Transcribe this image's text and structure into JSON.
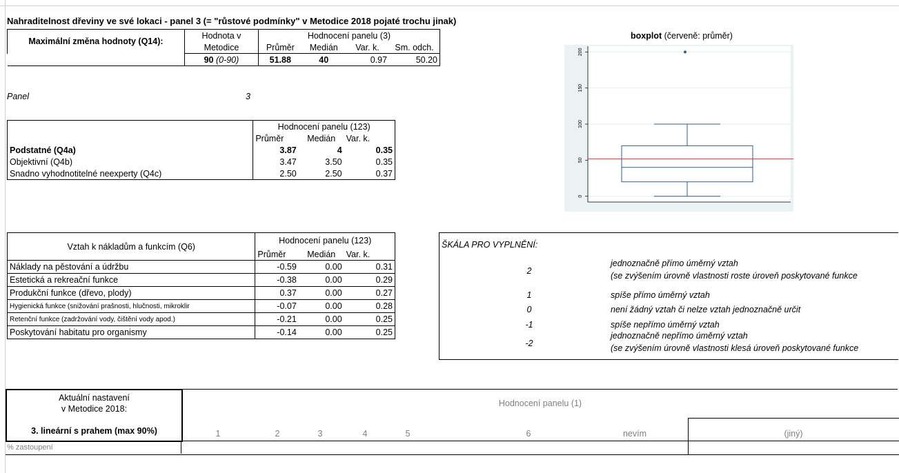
{
  "title": "Nahraditelnost dřeviny ve své lokaci - panel 3 (= \"růstové podmínky\" v Metodice 2018 pojaté trochu jinak)",
  "q14": {
    "row_label": "Maximální změna hodnoty (Q14):",
    "hodnota_header_1": "Hodnota v",
    "hodnota_header_2": "Metodice",
    "panel_header": "Hodnocení panelu (3)",
    "col_prumer": "Průměr",
    "col_median": "Medián",
    "col_vark": "Var. k.",
    "col_smodch": "Sm. odch.",
    "hodnota_value": "90",
    "hodnota_range": "(0-90)",
    "prumer": "51.88",
    "median": "40",
    "vark": "0.97",
    "smodch": "50.20"
  },
  "panel": {
    "label": "Panel",
    "value": "3"
  },
  "q4": {
    "header": "Hodnocení panelu (123)",
    "col_prumer": "Průměr",
    "col_median": "Medián",
    "col_vark": "Var. k.",
    "rows": [
      {
        "label": "Podstatné (Q4a)",
        "prumer": "3.87",
        "median": "4",
        "vark": "0.35"
      },
      {
        "label": "Objektivní (Q4b)",
        "prumer": "3.47",
        "median": "3.50",
        "vark": "0.35"
      },
      {
        "label": "Snadno vyhodnotitelné neexperty (Q4c)",
        "prumer": "2.50",
        "median": "2.50",
        "vark": "0.37"
      }
    ]
  },
  "q6": {
    "title": "Vztah k nákladům a funkcím (Q6)",
    "header": "Hodnocení panelu (123)",
    "col_prumer": "Průměr",
    "col_median": "Medián",
    "col_vark": "Var. k.",
    "rows": [
      {
        "label": "Náklady na pěstování a údržbu",
        "prumer": "-0.59",
        "median": "0.00",
        "vark": "0.31",
        "small": false
      },
      {
        "label": "Estetická a rekreační funkce",
        "prumer": "-0.38",
        "median": "0.00",
        "vark": "0.29",
        "small": false
      },
      {
        "label": "Produkční funkce (dřevo, plody)",
        "prumer": "0.37",
        "median": "0.00",
        "vark": "0.27",
        "small": false
      },
      {
        "label": "Hygienická funkce (snižování prašnosti, hlučnosti, mikroklir",
        "prumer": "-0.07",
        "median": "0.00",
        "vark": "0.28",
        "small": true
      },
      {
        "label": "Retenční funkce (zadržování vody, čištění vody apod.)",
        "prumer": "-0.21",
        "median": "0.00",
        "vark": "0.25",
        "small": true
      },
      {
        "label": "Poskytování habitatu pro organismy",
        "prumer": "-0.14",
        "median": "0.00",
        "vark": "0.25",
        "small": false
      }
    ]
  },
  "scale": {
    "title": "ŠKÁLA PRO VYPLNĚNÍ:",
    "items": [
      {
        "value": "2",
        "text": "jednoznačně přímo úměrný vztah",
        "text2": "(se zvýšením úrovně vlastnosti roste úroveň poskytované funkce"
      },
      {
        "value": "1",
        "text": "spíše přímo úměrný vztah",
        "text2": ""
      },
      {
        "value": "0",
        "text": "není žádný vztah či nelze vztah jednoznačně určit",
        "text2": ""
      },
      {
        "value": "-1",
        "text": "spíše nepřímo úměrný vztah",
        "text2": ""
      },
      {
        "value": "-2",
        "text": "jednoznačně nepřímo úměrný vztah",
        "text2": "(se zvýšením úrovně vlastnosti klesá úroveň poskytované funkce"
      }
    ]
  },
  "boxplot": {
    "title_bold": "boxplot",
    "title_rest": " (červeně: průměr)",
    "colors": {
      "box": "#2e5f8a",
      "mean": "#d0343c",
      "bg": "#eaf2f3",
      "grid": "#ffffff"
    }
  },
  "chart_data": {
    "type": "boxplot",
    "title": "boxplot (červeně: průměr)",
    "yticks": [
      0,
      50,
      100,
      150,
      200
    ],
    "ylim": [
      -8,
      208
    ],
    "min": 0,
    "q1": 20,
    "median": 40,
    "q3": 70,
    "max": 100,
    "outliers": [
      200
    ],
    "mean": 51.88
  },
  "bottom": {
    "setting_label_1": "Aktuální nastavení",
    "setting_label_2": "v Metodice 2018:",
    "setting_value": "3. lineární s prahem (max 90%)",
    "panel_header": "Hodnocení panelu (1)",
    "options": [
      "1",
      "2",
      "3",
      "4",
      "5",
      "6",
      "nevím"
    ],
    "other": "(jiný)",
    "row_label": "% zastoupení"
  }
}
